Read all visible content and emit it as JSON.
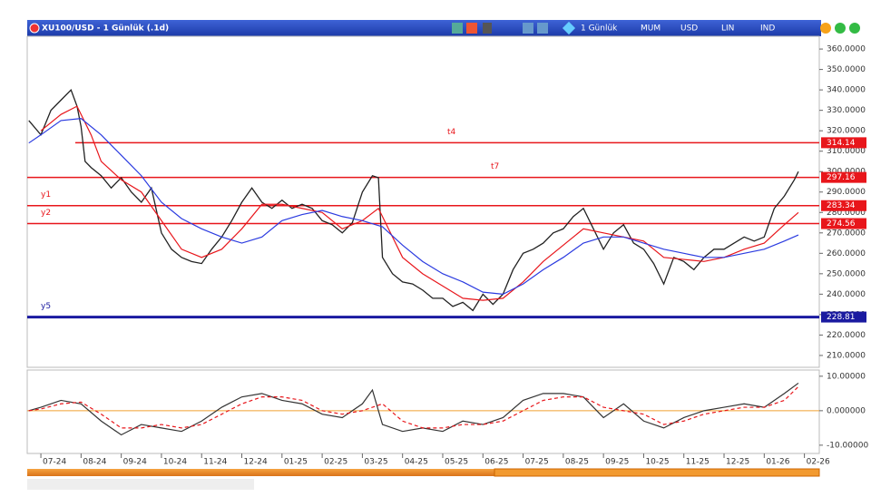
{
  "header": {
    "title": "XU100/USD - 1 Günlük (.1d)",
    "toolbar": [
      "1 Günlük",
      "MUM",
      "USD",
      "LIN",
      "IND"
    ]
  },
  "chart_data": [
    {
      "type": "line",
      "xlim": [
        -0.34,
        19.37
      ],
      "ylim": [
        204.2,
        366.25
      ],
      "xticks": [
        {
          "value": 0,
          "label": "07-24"
        },
        {
          "value": 1,
          "label": "08-24"
        },
        {
          "value": 2,
          "label": "09-24"
        },
        {
          "value": 3,
          "label": "10-24"
        },
        {
          "value": 4,
          "label": "11-24"
        },
        {
          "value": 5,
          "label": "12-24"
        },
        {
          "value": 6,
          "label": "01-25"
        },
        {
          "value": 7,
          "label": "02-25"
        },
        {
          "value": 8,
          "label": "03-25"
        },
        {
          "value": 9,
          "label": "04-25"
        },
        {
          "value": 10,
          "label": "05-25"
        },
        {
          "value": 11,
          "label": "06-25"
        },
        {
          "value": 12,
          "label": "07-25"
        },
        {
          "value": 13,
          "label": "08-25"
        },
        {
          "value": 14,
          "label": "09-25"
        },
        {
          "value": 15,
          "label": "10-25"
        },
        {
          "value": 16,
          "label": "11-25"
        },
        {
          "value": 17,
          "label": "12-25"
        },
        {
          "value": 18,
          "label": "01-26"
        },
        {
          "value": 19,
          "label": "02-26"
        }
      ],
      "yticks": [
        {
          "value": 360,
          "label": "360.0000"
        },
        {
          "value": 350,
          "label": "350.0000"
        },
        {
          "value": 340,
          "label": "340.0000"
        },
        {
          "value": 330,
          "label": "330.0000"
        },
        {
          "value": 320,
          "label": "320.0000"
        },
        {
          "value": 310,
          "label": "310.0000"
        },
        {
          "value": 300,
          "label": "300.0000"
        },
        {
          "value": 290,
          "label": "290.0000"
        },
        {
          "value": 280,
          "label": "280.0000"
        },
        {
          "value": 270,
          "label": "270.0000"
        },
        {
          "value": 260,
          "label": "260.0000"
        },
        {
          "value": 250,
          "label": "250.0000"
        },
        {
          "value": 240,
          "label": "240.0000"
        },
        {
          "value": 230,
          "label": "230.0000"
        },
        {
          "value": 220,
          "label": "220.0000"
        },
        {
          "value": 210,
          "label": "210.0000"
        }
      ],
      "levels": [
        {
          "name": "t4",
          "value": 314.14,
          "label": "314.14",
          "color": "#e8161b"
        },
        {
          "name": "t7",
          "value": 297.16,
          "label": "297.16",
          "color": "#e8161b"
        },
        {
          "name": "y1",
          "value": 283.34,
          "label": "283.34",
          "color": "#e8161b"
        },
        {
          "name": "y2",
          "value": 274.56,
          "label": "274.56",
          "color": "#e8161b"
        },
        {
          "name": "y5",
          "value": 228.81,
          "label": "228.81",
          "color": "#1a1aa0"
        }
      ],
      "series": [
        {
          "color": "#222222",
          "x": [
            -0.3,
            0,
            0.25,
            0.5,
            0.75,
            0.9,
            1,
            1.1,
            1.25,
            1.5,
            1.75,
            2,
            2.25,
            2.5,
            2.75,
            3,
            3.25,
            3.5,
            3.75,
            4,
            4.25,
            4.5,
            4.75,
            5,
            5.25,
            5.5,
            5.75,
            6,
            6.25,
            6.5,
            6.75,
            7,
            7.25,
            7.5,
            7.75,
            8,
            8.25,
            8.4,
            8.5,
            8.75,
            9,
            9.25,
            9.5,
            9.75,
            10,
            10.25,
            10.5,
            10.75,
            11,
            11.25,
            11.5,
            11.75,
            12,
            12.25,
            12.5,
            12.75,
            13,
            13.25,
            13.5,
            13.75,
            14,
            14.25,
            14.5,
            14.75,
            15,
            15.25,
            15.5,
            15.75,
            16,
            16.25,
            16.5,
            16.75,
            17,
            17.25,
            17.5,
            17.75,
            18,
            18.25,
            18.5,
            18.75,
            18.85
          ],
          "values": [
            325,
            318,
            330,
            335,
            340,
            332,
            322,
            305,
            302,
            298,
            292,
            297,
            290,
            285,
            292,
            270,
            262,
            258,
            256,
            255,
            262,
            268,
            276,
            285,
            292,
            285,
            282,
            286,
            282,
            284,
            282,
            276,
            274,
            270,
            275,
            290,
            298,
            297,
            258,
            250,
            246,
            245,
            242,
            238,
            238,
            234,
            236,
            232,
            240,
            235,
            240,
            252,
            260,
            262,
            265,
            270,
            272,
            278,
            282,
            272,
            262,
            270,
            274,
            265,
            262,
            255,
            245,
            258,
            256,
            252,
            258,
            262,
            262,
            265,
            268,
            266,
            268,
            282,
            288,
            296,
            300
          ]
        },
        {
          "color": "#e8161b",
          "x": [
            0,
            0.5,
            0.9,
            1.25,
            1.5,
            2,
            2.5,
            3,
            3.5,
            4,
            4.5,
            5,
            5.5,
            6,
            6.5,
            7,
            7.5,
            8,
            8.4,
            8.75,
            9,
            9.5,
            10,
            10.5,
            11,
            11.5,
            12,
            12.5,
            13,
            13.5,
            14,
            14.5,
            15,
            15.5,
            16,
            16.5,
            17,
            17.5,
            18,
            18.5,
            18.85
          ],
          "values": [
            320,
            328,
            332,
            318,
            305,
            296,
            290,
            276,
            262,
            258,
            262,
            272,
            284,
            284,
            282,
            280,
            272,
            276,
            282,
            268,
            258,
            250,
            244,
            238,
            237,
            238,
            246,
            256,
            264,
            272,
            270,
            268,
            266,
            258,
            257,
            256,
            258,
            262,
            265,
            274,
            280
          ]
        },
        {
          "color": "#2b3be0",
          "x": [
            -0.3,
            0,
            0.5,
            1,
            1.5,
            2,
            2.5,
            3,
            3.5,
            4,
            4.5,
            5,
            5.5,
            6,
            6.5,
            7,
            7.5,
            8,
            8.5,
            9,
            9.5,
            10,
            10.5,
            11,
            11.5,
            12,
            12.5,
            13,
            13.5,
            14,
            14.5,
            15,
            15.5,
            16,
            16.5,
            17,
            17.5,
            18,
            18.5,
            18.85
          ],
          "values": [
            314,
            318,
            325,
            326,
            318,
            308,
            298,
            285,
            277,
            272,
            268,
            265,
            268,
            276,
            279,
            281,
            278,
            276,
            273,
            264,
            256,
            250,
            246,
            241,
            240,
            245,
            252,
            258,
            265,
            268,
            268,
            265,
            262,
            260,
            258,
            258,
            260,
            262,
            266,
            269
          ]
        }
      ]
    },
    {
      "type": "line",
      "xlim": [
        -0.34,
        19.37
      ],
      "ylim": [
        -12.4,
        11.8
      ],
      "yticks": [
        {
          "value": 10,
          "label": "10.00000"
        },
        {
          "value": 0,
          "label": "0.000000"
        },
        {
          "value": -10,
          "label": "-10.00000"
        }
      ],
      "zero_line_color": "#f0a030",
      "series": [
        {
          "color": "#333333",
          "dash": false,
          "x": [
            -0.3,
            0,
            0.5,
            1,
            1.5,
            2,
            2.5,
            3,
            3.5,
            4,
            4.5,
            5,
            5.5,
            6,
            6.5,
            7,
            7.5,
            8,
            8.25,
            8.5,
            9,
            9.5,
            10,
            10.5,
            11,
            11.5,
            12,
            12.5,
            13,
            13.5,
            14,
            14.5,
            15,
            15.5,
            16,
            16.5,
            17,
            17.5,
            18,
            18.5,
            18.85
          ],
          "values": [
            0,
            1,
            3,
            2,
            -3,
            -7,
            -4,
            -5,
            -6,
            -3,
            1,
            4,
            5,
            3,
            2,
            -1,
            -2,
            2,
            6,
            -4,
            -6,
            -5,
            -6,
            -3,
            -4,
            -2,
            3,
            5,
            5,
            4,
            -2,
            2,
            -3,
            -5,
            -2,
            0,
            1,
            2,
            1,
            5,
            8
          ]
        },
        {
          "color": "#e8161b",
          "dash": true,
          "x": [
            -0.3,
            0,
            0.5,
            1,
            1.5,
            2,
            2.5,
            3,
            3.5,
            4,
            4.5,
            5,
            5.5,
            6,
            6.5,
            7,
            7.5,
            8,
            8.5,
            9,
            9.5,
            10,
            10.5,
            11,
            11.5,
            12,
            12.5,
            13,
            13.5,
            14,
            14.5,
            15,
            15.5,
            16,
            16.5,
            17,
            17.5,
            18,
            18.5,
            18.85
          ],
          "values": [
            0,
            0.5,
            2,
            2.5,
            -1,
            -5,
            -5,
            -4,
            -5,
            -4,
            -1,
            2,
            4,
            4,
            3,
            0,
            -1,
            0,
            2,
            -3,
            -5,
            -5,
            -4,
            -4,
            -3,
            0,
            3,
            4,
            4,
            1,
            0,
            -1,
            -4,
            -3,
            -1,
            0,
            1,
            1,
            3,
            7
          ]
        }
      ]
    }
  ]
}
